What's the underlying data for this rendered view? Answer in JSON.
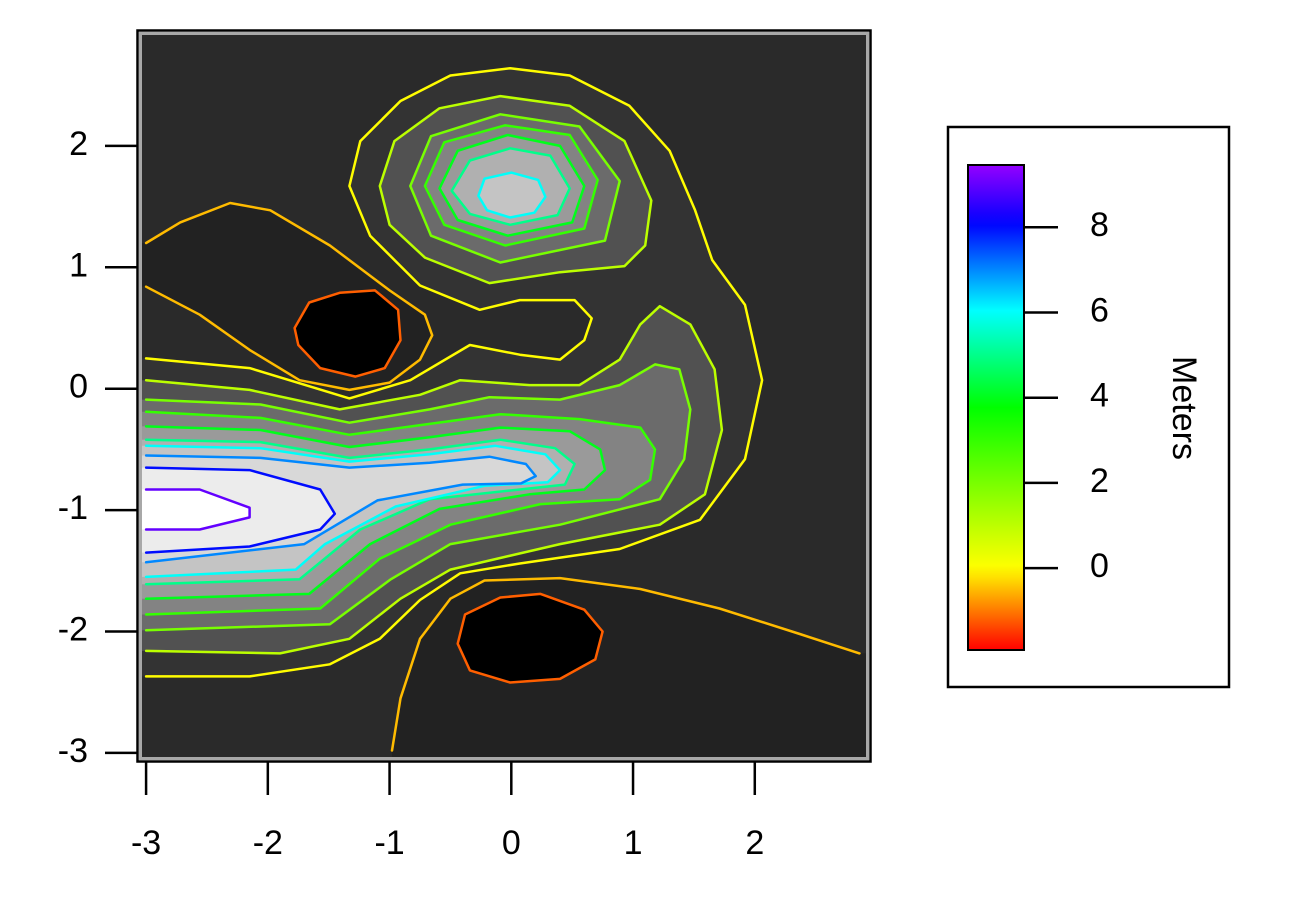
{
  "chart_data": {
    "type": "contour",
    "xlim": [
      -3.05,
      2.93
    ],
    "ylim": [
      -3.05,
      2.93
    ],
    "xticks": [
      -3,
      -2,
      -1,
      0,
      1,
      2
    ],
    "yticks": [
      -3,
      -2,
      -1,
      0,
      1,
      2
    ],
    "colormap": "rainbow",
    "fill": "grayscale",
    "colorbar": {
      "label": "Meters",
      "zlim": [
        -1.92,
        9.46
      ],
      "ticks": [
        0,
        2,
        4,
        6,
        8
      ]
    },
    "contours": [
      {
        "level": -0.5,
        "x": [
          -3,
          -2.72,
          -2.31,
          -1.98,
          -1.49,
          -1.0,
          -0.71,
          -0.65,
          -0.75,
          -1.0,
          -1.33,
          -1.74,
          -2.15,
          -2.56,
          -3
        ],
        "y": [
          1.2,
          1.37,
          1.53,
          1.47,
          1.18,
          0.81,
          0.61,
          0.44,
          0.24,
          0.05,
          -0.01,
          0.07,
          0.32,
          0.61,
          0.84
        ]
      },
      {
        "level": -1.2,
        "x": [
          -1.78,
          -1.66,
          -1.41,
          -1.12,
          -0.93,
          -0.91,
          -1.04,
          -1.28,
          -1.57,
          -1.75
        ],
        "y": [
          0.5,
          0.71,
          0.79,
          0.81,
          0.65,
          0.4,
          0.17,
          0.1,
          0.17,
          0.36
        ]
      },
      {
        "level": -0.5,
        "x": [
          -0.98,
          -0.91,
          -0.75,
          -0.5,
          -0.22,
          0.4,
          1.06,
          1.71,
          2.37,
          2.86
        ],
        "y": [
          -2.98,
          -2.55,
          -2.06,
          -1.73,
          -1.58,
          -1.56,
          -1.65,
          -1.81,
          -2.02,
          -2.18
        ]
      },
      {
        "level": -1.2,
        "x": [
          -0.44,
          -0.38,
          -0.09,
          0.24,
          0.6,
          0.75,
          0.69,
          0.4,
          -0.01,
          -0.34
        ],
        "y": [
          -2.1,
          -1.86,
          -1.72,
          -1.69,
          -1.82,
          -2.0,
          -2.23,
          -2.39,
          -2.42,
          -2.32
        ]
      },
      {
        "level": 0,
        "x": [
          -3,
          -2.15,
          -1.33,
          -0.83,
          -0.34,
          0.07,
          0.4,
          0.6,
          0.66,
          0.52,
          0.07,
          -0.26,
          -0.75,
          -1.16,
          -1.33,
          -1.24,
          -0.91,
          -0.5,
          -0.01,
          0.48,
          0.97,
          1.3,
          1.51,
          1.65,
          1.92,
          2.06,
          1.92,
          1.55,
          0.89,
          0.07,
          -0.42,
          -0.75,
          -1.08,
          -1.49,
          -2.15,
          -3
        ],
        "y": [
          0.25,
          0.17,
          -0.08,
          0.07,
          0.36,
          0.28,
          0.24,
          0.4,
          0.58,
          0.73,
          0.73,
          0.65,
          0.85,
          1.26,
          1.67,
          2.04,
          2.37,
          2.58,
          2.64,
          2.58,
          2.33,
          1.96,
          1.47,
          1.06,
          0.69,
          0.07,
          -0.58,
          -1.08,
          -1.32,
          -1.44,
          -1.52,
          -1.74,
          -2.06,
          -2.27,
          -2.37,
          -2.37
        ]
      },
      {
        "level": 1,
        "x": [
          -3,
          -2.15,
          -1.41,
          -0.75,
          -0.42,
          0.15,
          0.56,
          0.89,
          1.06,
          1.22,
          1.47,
          1.67,
          1.73,
          1.59,
          1.22,
          0.4,
          -0.5,
          -0.91,
          -1.33,
          -1.9,
          -3
        ],
        "y": [
          0.07,
          -0.01,
          -0.17,
          -0.05,
          0.07,
          0.03,
          0.03,
          0.24,
          0.53,
          0.68,
          0.53,
          0.16,
          -0.34,
          -0.87,
          -1.12,
          -1.28,
          -1.49,
          -1.73,
          -2.06,
          -2.18,
          -2.16
        ]
      },
      {
        "level": 1,
        "x": [
          -1.08,
          -0.96,
          -0.59,
          -0.09,
          0.48,
          0.93,
          1.15,
          1.1,
          0.93,
          0.4,
          -0.18,
          -0.71,
          -1.0
        ],
        "y": [
          1.67,
          2.04,
          2.31,
          2.41,
          2.33,
          2.04,
          1.55,
          1.18,
          1.01,
          0.96,
          0.87,
          1.08,
          1.35
        ]
      },
      {
        "level": 2,
        "x": [
          -3,
          -2.06,
          -1.33,
          -0.67,
          -0.18,
          0.4,
          0.89,
          1.18,
          1.38,
          1.47,
          1.42,
          1.22,
          0.4,
          -0.5,
          -0.99,
          -1.49,
          -3
        ],
        "y": [
          -0.09,
          -0.13,
          -0.28,
          -0.17,
          -0.07,
          -0.09,
          0.03,
          0.2,
          0.16,
          -0.17,
          -0.58,
          -0.91,
          -1.12,
          -1.28,
          -1.57,
          -1.94,
          -1.99
        ]
      },
      {
        "level": 2,
        "x": [
          -0.83,
          -0.66,
          -0.09,
          0.56,
          0.89,
          0.77,
          -0.09,
          -0.66
        ],
        "y": [
          1.67,
          2.08,
          2.26,
          2.16,
          1.71,
          1.22,
          1.04,
          1.26
        ]
      },
      {
        "level": 3,
        "x": [
          -3,
          -2.06,
          -1.33,
          -0.67,
          -0.09,
          0.56,
          1.06,
          1.18,
          1.14,
          0.89,
          0.24,
          -0.5,
          -1.08,
          -1.57,
          -3
        ],
        "y": [
          -0.19,
          -0.24,
          -0.38,
          -0.29,
          -0.21,
          -0.25,
          -0.32,
          -0.5,
          -0.75,
          -0.91,
          -0.95,
          -1.12,
          -1.4,
          -1.81,
          -1.86
        ]
      },
      {
        "level": 3,
        "x": [
          -0.71,
          -0.55,
          -0.05,
          0.48,
          0.71,
          0.6,
          -0.05,
          -0.55
        ],
        "y": [
          1.67,
          2.03,
          2.17,
          2.09,
          1.72,
          1.32,
          1.18,
          1.35
        ]
      },
      {
        "level": 4,
        "x": [
          -3,
          -2.06,
          -1.33,
          -0.67,
          -0.09,
          0.48,
          0.73,
          0.77,
          0.6,
          0.15,
          -0.59,
          -1.16,
          -1.66,
          -3
        ],
        "y": [
          -0.31,
          -0.34,
          -0.48,
          -0.4,
          -0.32,
          -0.35,
          -0.5,
          -0.67,
          -0.83,
          -0.87,
          -0.99,
          -1.28,
          -1.69,
          -1.73
        ]
      },
      {
        "level": 4,
        "x": [
          -0.59,
          -0.44,
          -0.03,
          0.4,
          0.6,
          0.5,
          -0.03,
          -0.44
        ],
        "y": [
          1.65,
          1.96,
          2.09,
          2.0,
          1.67,
          1.37,
          1.26,
          1.39
        ]
      },
      {
        "level": 5,
        "x": [
          -3,
          -2.06,
          -1.33,
          -0.67,
          -0.09,
          0.36,
          0.52,
          0.44,
          0.07,
          -0.67,
          -1.24,
          -1.74,
          -3
        ],
        "y": [
          -0.42,
          -0.44,
          -0.57,
          -0.5,
          -0.42,
          -0.49,
          -0.62,
          -0.79,
          -0.83,
          -0.91,
          -1.16,
          -1.57,
          -1.61
        ]
      },
      {
        "level": 5,
        "x": [
          -0.49,
          -0.34,
          -0.01,
          0.32,
          0.48,
          0.38,
          -0.01,
          -0.34
        ],
        "y": [
          1.63,
          1.88,
          1.98,
          1.92,
          1.65,
          1.43,
          1.35,
          1.44
        ]
      },
      {
        "level": 6,
        "x": [
          -3,
          -2.06,
          -1.33,
          -0.67,
          -0.13,
          0.28,
          0.4,
          0.3,
          -0.22,
          -0.95,
          -1.53,
          -1.77,
          -3
        ],
        "y": [
          -0.47,
          -0.49,
          -0.6,
          -0.54,
          -0.47,
          -0.54,
          -0.67,
          -0.77,
          -0.8,
          -0.97,
          -1.28,
          -1.49,
          -1.55
        ]
      },
      {
        "level": 6,
        "x": [
          -0.27,
          -0.22,
          0.0,
          0.22,
          0.28,
          0.19,
          -0.01,
          -0.2
        ],
        "y": [
          1.59,
          1.73,
          1.78,
          1.72,
          1.58,
          1.45,
          1.41,
          1.47
        ]
      },
      {
        "level": 7,
        "x": [
          -3,
          -2.06,
          -1.33,
          -0.67,
          -0.18,
          0.12,
          0.2,
          0.08,
          -0.4,
          -1.1,
          -1.7,
          -3
        ],
        "y": [
          -0.55,
          -0.57,
          -0.65,
          -0.61,
          -0.56,
          -0.62,
          -0.72,
          -0.78,
          -0.79,
          -0.92,
          -1.28,
          -1.43
        ]
      },
      {
        "level": 8,
        "x": [
          -3,
          -2.15,
          -1.57,
          -1.45,
          -1.57,
          -2.15,
          -3
        ],
        "y": [
          -0.65,
          -0.67,
          -0.83,
          -1.03,
          -1.16,
          -1.3,
          -1.35
        ]
      },
      {
        "level": 9,
        "x": [
          -3,
          -2.56,
          -2.15,
          -2.15,
          -2.56,
          -3
        ],
        "y": [
          -0.83,
          -0.83,
          -0.98,
          -1.06,
          -1.16,
          -1.16
        ]
      }
    ]
  }
}
